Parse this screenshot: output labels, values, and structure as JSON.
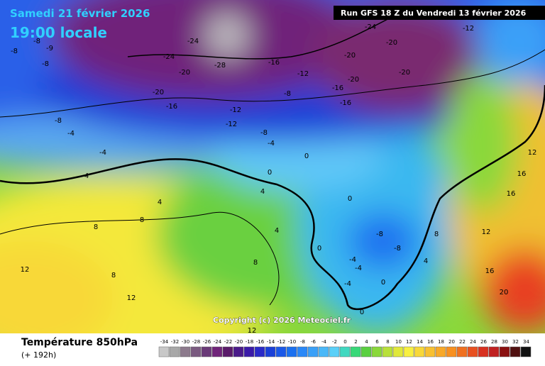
{
  "header": {
    "date": "Samedi 21 février 2026",
    "time": "19:00 locale",
    "run": "Run GFS 18 Z du Vendredi 13 février 2026"
  },
  "map": {
    "labels": [
      "-8",
      "-8",
      "-9",
      "-8",
      "-8",
      "-4",
      "-4",
      "4",
      "4",
      "8",
      "8",
      "12",
      "8",
      "12",
      "-24",
      "-24",
      "-28",
      "-20",
      "-20",
      "-16",
      "-16",
      "-12",
      "-8",
      "-12",
      "-12",
      "-8",
      "-4",
      "-16",
      "-16",
      "-20",
      "-20",
      "-24",
      "-20",
      "-20",
      "-12",
      "0",
      "0",
      "4",
      "0",
      "4",
      "8",
      "-8",
      "-8",
      "0",
      "-4",
      "-4",
      "-4",
      "0",
      "0",
      "4",
      "8",
      "12",
      "16",
      "16",
      "12",
      "16",
      "20",
      "12"
    ],
    "copyright": "Copyright (c) 2026 Meteociel.fr"
  },
  "footer": {
    "title": "Température 850hPa",
    "subtitle": "(+ 192h)"
  },
  "legend": {
    "ticks": [
      -34,
      -32,
      -30,
      -28,
      -26,
      -24,
      -22,
      -20,
      -18,
      -16,
      -14,
      -12,
      -10,
      -8,
      -6,
      -4,
      -2,
      0,
      2,
      4,
      6,
      8,
      10,
      12,
      14,
      16,
      18,
      20,
      22,
      24,
      26,
      28,
      30,
      32,
      34
    ],
    "colors": [
      "#c8c8c8",
      "#a8a8a8",
      "#8c7a8c",
      "#7a5a80",
      "#6a3a78",
      "#70247a",
      "#5a1a6a",
      "#4a1a8a",
      "#3a1aa8",
      "#2a2ac8",
      "#1a40d8",
      "#1a58e8",
      "#1a70f0",
      "#2a88f8",
      "#3aa0f8",
      "#4ab8f8",
      "#5ad0f8",
      "#40d8c0",
      "#38d878",
      "#5ad040",
      "#8ad83a",
      "#b8e03a",
      "#e0e83a",
      "#f8f040",
      "#f8d838",
      "#f8c030",
      "#f8a828",
      "#f89020",
      "#f07020",
      "#e85020",
      "#d83020",
      "#c02020",
      "#8a1010",
      "#501010",
      "#101010"
    ]
  }
}
